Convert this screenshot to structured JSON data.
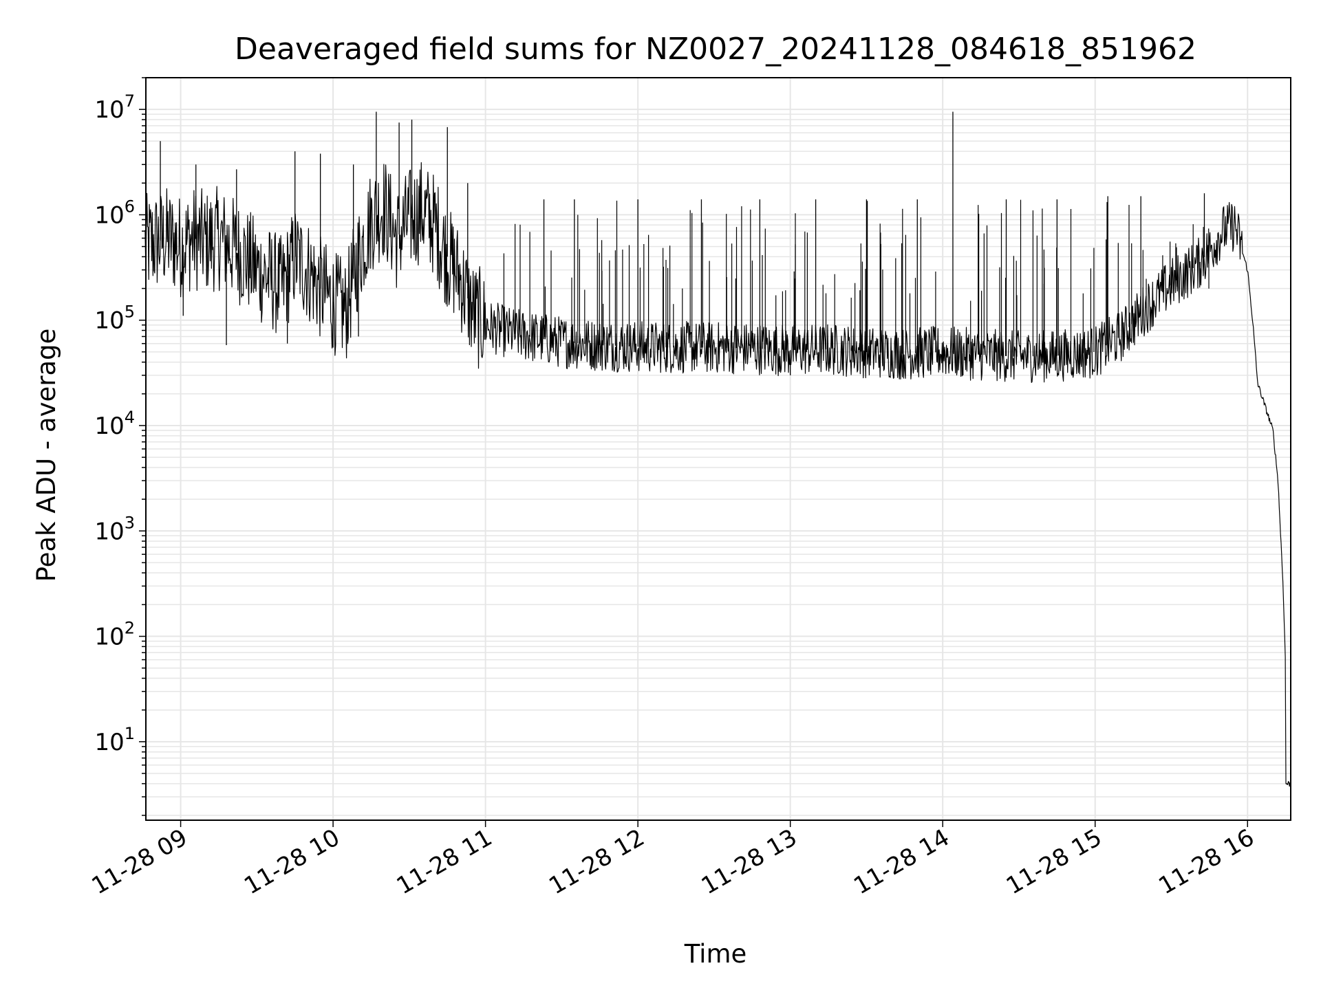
{
  "chart_data": {
    "type": "line",
    "title": "Deaveraged field sums for NZ0027_20241128_084618_851962",
    "xlabel": "Time",
    "ylabel": "Peak ADU - average",
    "y_scale": "log",
    "ylim": [
      1.8,
      20000000
    ],
    "xlim": [
      "2024-11-28 08:46:18",
      "2024-11-28 16:17:00"
    ],
    "grid": "major and minor",
    "legend": "none",
    "line_color": "#000000",
    "grid_color": "#e6e6e6",
    "x_ticks": [
      {
        "time": "2024-11-28 09:00",
        "label": "11-28 09"
      },
      {
        "time": "2024-11-28 10:00",
        "label": "11-28 10"
      },
      {
        "time": "2024-11-28 11:00",
        "label": "11-28 11"
      },
      {
        "time": "2024-11-28 12:00",
        "label": "11-28 12"
      },
      {
        "time": "2024-11-28 13:00",
        "label": "11-28 13"
      },
      {
        "time": "2024-11-28 14:00",
        "label": "11-28 14"
      },
      {
        "time": "2024-11-28 15:00",
        "label": "11-28 15"
      },
      {
        "time": "2024-11-28 16:00",
        "label": "11-28 16"
      }
    ],
    "y_ticks": [
      {
        "value": 10,
        "base": "10",
        "exp": "1"
      },
      {
        "value": 100,
        "base": "10",
        "exp": "2"
      },
      {
        "value": 1000,
        "base": "10",
        "exp": "3"
      },
      {
        "value": 10000,
        "base": "10",
        "exp": "4"
      },
      {
        "value": 100000,
        "base": "10",
        "exp": "5"
      },
      {
        "value": 1000000,
        "base": "10",
        "exp": "6"
      },
      {
        "value": 10000000,
        "base": "10",
        "exp": "7"
      }
    ],
    "series": [
      {
        "points": [
          [
            "2024-11-28 08:46",
            500000
          ],
          [
            "2024-11-28 08:50",
            550000
          ],
          [
            "2024-11-28 08:55",
            600000
          ],
          [
            "2024-11-28 09:00",
            500000
          ],
          [
            "2024-11-28 09:05",
            600000
          ],
          [
            "2024-11-28 09:10",
            550000
          ],
          [
            "2024-11-28 09:15",
            600000
          ],
          [
            "2024-11-28 09:20",
            500000
          ],
          [
            "2024-11-28 09:25",
            400000
          ],
          [
            "2024-11-28 09:30",
            300000
          ],
          [
            "2024-11-28 09:35",
            250000
          ],
          [
            "2024-11-28 09:40",
            200000
          ],
          [
            "2024-11-28 09:45",
            400000
          ],
          [
            "2024-11-28 09:50",
            300000
          ],
          [
            "2024-11-28 09:55",
            200000
          ],
          [
            "2024-11-28 10:00",
            150000
          ],
          [
            "2024-11-28 10:05",
            120000
          ],
          [
            "2024-11-28 10:10",
            400000
          ],
          [
            "2024-11-28 10:15",
            900000
          ],
          [
            "2024-11-28 10:20",
            1200000
          ],
          [
            "2024-11-28 10:25",
            600000
          ],
          [
            "2024-11-28 10:30",
            900000
          ],
          [
            "2024-11-28 10:35",
            1100000
          ],
          [
            "2024-11-28 10:40",
            800000
          ],
          [
            "2024-11-28 10:45",
            400000
          ],
          [
            "2024-11-28 10:50",
            250000
          ],
          [
            "2024-11-28 10:55",
            120000
          ],
          [
            "2024-11-28 11:00",
            90000
          ],
          [
            "2024-11-28 11:10",
            75000
          ],
          [
            "2024-11-28 11:20",
            68000
          ],
          [
            "2024-11-28 11:30",
            62000
          ],
          [
            "2024-11-28 11:45",
            58000
          ],
          [
            "2024-11-28 12:00",
            56000
          ],
          [
            "2024-11-28 12:15",
            55000
          ],
          [
            "2024-11-28 12:30",
            55000
          ],
          [
            "2024-11-28 12:45",
            54000
          ],
          [
            "2024-11-28 13:00",
            52000
          ],
          [
            "2024-11-28 13:15",
            53000
          ],
          [
            "2024-11-28 13:30",
            50000
          ],
          [
            "2024-11-28 13:45",
            48000
          ],
          [
            "2024-11-28 14:00",
            50000
          ],
          [
            "2024-11-28 14:15",
            47000
          ],
          [
            "2024-11-28 14:30",
            45000
          ],
          [
            "2024-11-28 14:45",
            46000
          ],
          [
            "2024-11-28 15:00",
            50000
          ],
          [
            "2024-11-28 15:10",
            70000
          ],
          [
            "2024-11-28 15:20",
            130000
          ],
          [
            "2024-11-28 15:30",
            220000
          ],
          [
            "2024-11-28 15:40",
            330000
          ],
          [
            "2024-11-28 15:45",
            450000
          ],
          [
            "2024-11-28 15:50",
            700000
          ],
          [
            "2024-11-28 15:55",
            800000
          ],
          [
            "2024-11-28 16:00",
            300000
          ],
          [
            "2024-11-28 16:02",
            100000
          ],
          [
            "2024-11-28 16:04",
            25000
          ],
          [
            "2024-11-28 16:07",
            15000
          ],
          [
            "2024-11-28 16:10",
            9000
          ],
          [
            "2024-11-28 16:12",
            3000
          ],
          [
            "2024-11-28 16:14",
            300
          ],
          [
            "2024-11-28 16:15",
            50
          ],
          [
            "2024-11-28 16:15",
            4
          ],
          [
            "2024-11-28 16:17",
            4
          ]
        ],
        "spikes": [
          [
            "2024-11-28 08:52",
            5000000
          ],
          [
            "2024-11-28 09:06",
            3000000
          ],
          [
            "2024-11-28 09:22",
            2700000
          ],
          [
            "2024-11-28 09:45",
            4000000
          ],
          [
            "2024-11-28 09:55",
            3800000
          ],
          [
            "2024-11-28 10:08",
            3000000
          ],
          [
            "2024-11-28 10:17",
            9500000
          ],
          [
            "2024-11-28 10:26",
            7500000
          ],
          [
            "2024-11-28 10:31",
            8000000
          ],
          [
            "2024-11-28 10:45",
            6800000
          ],
          [
            "2024-11-28 10:53",
            2000000
          ],
          [
            "2024-11-28 11:23",
            1400000
          ],
          [
            "2024-11-28 11:35",
            1400000
          ],
          [
            "2024-11-28 12:00",
            1400000
          ],
          [
            "2024-11-28 12:25",
            1400000
          ],
          [
            "2024-11-28 12:48",
            1400000
          ],
          [
            "2024-11-28 13:10",
            1400000
          ],
          [
            "2024-11-28 13:30",
            1400000
          ],
          [
            "2024-11-28 13:50",
            1400000
          ],
          [
            "2024-11-28 14:04",
            9500000
          ],
          [
            "2024-11-28 14:25",
            1400000
          ],
          [
            "2024-11-28 14:45",
            1400000
          ],
          [
            "2024-11-28 15:05",
            1500000
          ],
          [
            "2024-11-28 15:18",
            1500000
          ],
          [
            "2024-11-28 15:43",
            1600000
          ]
        ],
        "dips": [
          [
            "2024-11-28 09:01",
            110000
          ],
          [
            "2024-11-28 09:18",
            58000
          ],
          [
            "2024-11-28 09:42",
            60000
          ],
          [
            "2024-11-28 10:00",
            55000
          ],
          [
            "2024-11-28 10:10",
            70000
          ],
          [
            "2024-11-28 13:00",
            30000
          ],
          [
            "2024-11-28 13:55",
            33000
          ],
          [
            "2024-11-28 14:08",
            30000
          ]
        ]
      }
    ]
  }
}
